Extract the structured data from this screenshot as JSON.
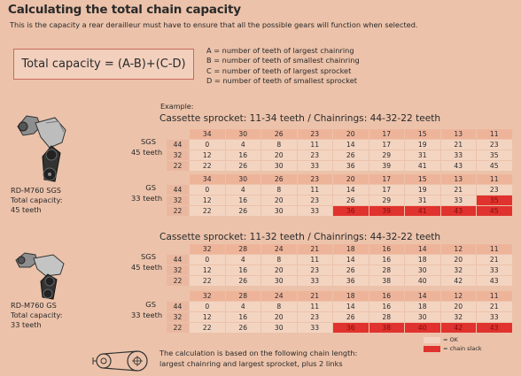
{
  "title": "Calculating the total chain capacity",
  "subtitle": "This is the capacity a rear derailleur must have to ensure that all the possible gears will function when selected.",
  "formula": "Total capacity = (A-B)+(C-D)",
  "definitions": [
    "A = number of teeth of largest chainring",
    "B = number of teeth of smallest chainring",
    "C = number of teeth of largest sprocket",
    "D = number of teeth of smallest sprocket"
  ],
  "example_label": "Example:",
  "sections": [
    {
      "heading": "Cassette sprocket: 11-34 teeth / Chainrings: 44-32-22 teeth",
      "sprockets": [
        "34",
        "30",
        "26",
        "23",
        "20",
        "17",
        "15",
        "13",
        "11"
      ],
      "tables": [
        {
          "label_type": "SGS",
          "label_teeth": "45 teeth",
          "rows": [
            {
              "chainring": "44",
              "values": [
                "0",
                "4",
                "8",
                "11",
                "14",
                "17",
                "19",
                "21",
                "23"
              ],
              "slack": []
            },
            {
              "chainring": "32",
              "values": [
                "12",
                "16",
                "20",
                "23",
                "26",
                "29",
                "31",
                "33",
                "35"
              ],
              "slack": []
            },
            {
              "chainring": "22",
              "values": [
                "22",
                "26",
                "30",
                "33",
                "36",
                "39",
                "41",
                "43",
                "45"
              ],
              "slack": []
            }
          ]
        },
        {
          "label_type": "GS",
          "label_teeth": "33 teeth",
          "rows": [
            {
              "chainring": "44",
              "values": [
                "0",
                "4",
                "8",
                "11",
                "14",
                "17",
                "19",
                "21",
                "23"
              ],
              "slack": []
            },
            {
              "chainring": "32",
              "values": [
                "12",
                "16",
                "20",
                "23",
                "26",
                "29",
                "31",
                "33",
                "35"
              ],
              "slack": [
                8
              ]
            },
            {
              "chainring": "22",
              "values": [
                "22",
                "26",
                "30",
                "33",
                "36",
                "39",
                "41",
                "43",
                "45"
              ],
              "slack": [
                4,
                5,
                6,
                7,
                8
              ]
            }
          ]
        }
      ]
    },
    {
      "heading": "Cassette sprocket: 11-32 teeth / Chainrings: 44-32-22 teeth",
      "sprockets": [
        "32",
        "28",
        "24",
        "21",
        "18",
        "16",
        "14",
        "12",
        "11"
      ],
      "tables": [
        {
          "label_type": "SGS",
          "label_teeth": "45 teeth",
          "rows": [
            {
              "chainring": "44",
              "values": [
                "0",
                "4",
                "8",
                "11",
                "14",
                "16",
                "18",
                "20",
                "21"
              ],
              "slack": []
            },
            {
              "chainring": "32",
              "values": [
                "12",
                "16",
                "20",
                "23",
                "26",
                "28",
                "30",
                "32",
                "33"
              ],
              "slack": []
            },
            {
              "chainring": "22",
              "values": [
                "22",
                "26",
                "30",
                "33",
                "36",
                "38",
                "40",
                "42",
                "43"
              ],
              "slack": []
            }
          ]
        },
        {
          "label_type": "GS",
          "label_teeth": "33 teeth",
          "rows": [
            {
              "chainring": "44",
              "values": [
                "0",
                "4",
                "8",
                "11",
                "14",
                "16",
                "18",
                "20",
                "21"
              ],
              "slack": []
            },
            {
              "chainring": "32",
              "values": [
                "12",
                "16",
                "20",
                "23",
                "26",
                "28",
                "30",
                "32",
                "33"
              ],
              "slack": []
            },
            {
              "chainring": "22",
              "values": [
                "22",
                "26",
                "30",
                "33",
                "36",
                "38",
                "40",
                "42",
                "43"
              ],
              "slack": [
                4,
                5,
                6,
                7,
                8
              ]
            }
          ]
        }
      ]
    }
  ],
  "models": [
    {
      "line1": "RD-M760 SGS",
      "line2": "Total capacity:",
      "line3": "45 teeth"
    },
    {
      "line1": "RD-M760 GS",
      "line2": "Total capacity:",
      "line3": "33 teeth"
    }
  ],
  "footer": {
    "line1": "The calculation is based on the following chain length:",
    "line2": "largest chainring and largest sprocket, plus 2 links"
  },
  "key": {
    "ok_label": "= OK",
    "slack_label": "= chain slack"
  },
  "colors": {
    "background": "#ecc2aa",
    "cell": "#f3d4c1",
    "header_cell": "#eeb49a",
    "chainring_cell": "#eab8a0",
    "slack": "#e0322e",
    "formula_border": "#c86b5a"
  }
}
